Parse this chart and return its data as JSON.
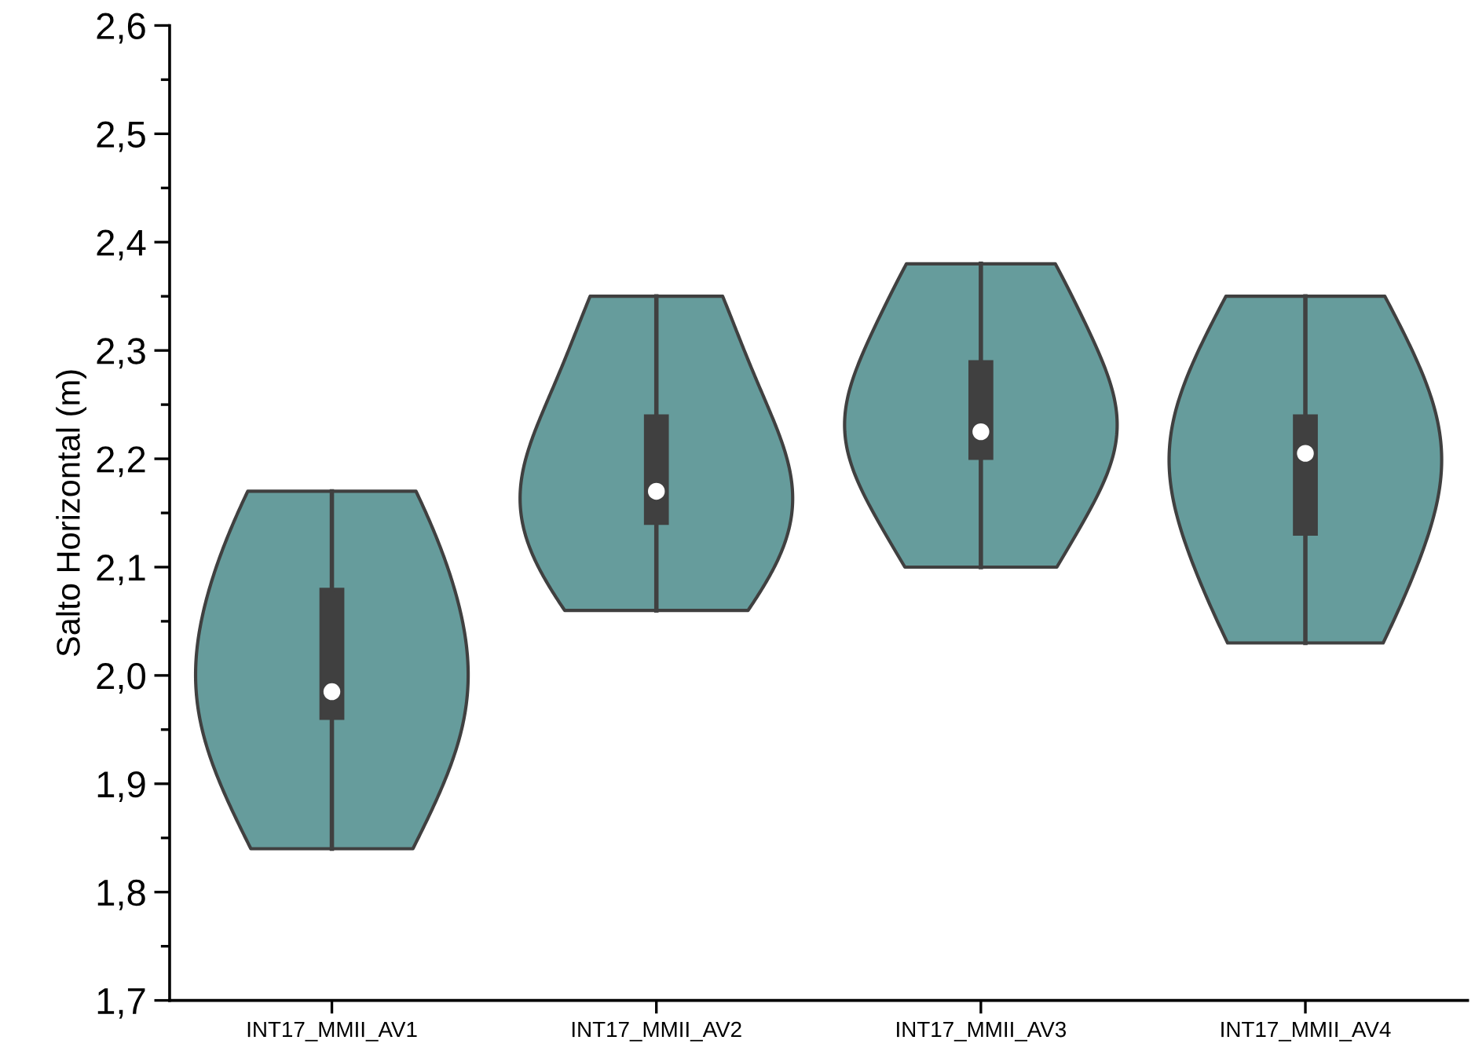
{
  "chart_data": {
    "type": "box",
    "ylabel": "Salto Horizontal (m)",
    "categories": [
      "INT17_MMII_AV1",
      "INT17_MMII_AV2",
      "INT17_MMII_AV3",
      "INT17_MMII_AV4"
    ],
    "series": [
      {
        "color": "#404040",
        "boxes": [
          {
            "low": 1.84,
            "q1": 1.96,
            "median": 1.985,
            "q3": 2.08,
            "high": 2.17
          },
          {
            "low": 2.06,
            "q1": 2.14,
            "median": 2.17,
            "q3": 2.24,
            "high": 2.35
          },
          {
            "low": 2.1,
            "q1": 2.2,
            "median": 2.225,
            "q3": 2.29,
            "high": 2.38
          },
          {
            "low": 2.03,
            "q1": 2.13,
            "median": 2.205,
            "q3": 2.24,
            "high": 2.35
          }
        ]
      }
    ],
    "ylim": [
      1.7,
      2.6
    ],
    "yticks": [
      {
        "value": 1.7,
        "label": "1,7"
      },
      {
        "value": 1.8,
        "label": "1,8"
      },
      {
        "value": 1.9,
        "label": "1,9"
      },
      {
        "value": 2.0,
        "label": "2,0"
      },
      {
        "value": 2.1,
        "label": "2,1"
      },
      {
        "value": 2.2,
        "label": "2,2"
      },
      {
        "value": 2.3,
        "label": "2,3"
      },
      {
        "value": 2.4,
        "label": "2,4"
      },
      {
        "value": 2.5,
        "label": "2,5"
      },
      {
        "value": 2.6,
        "label": "2,6"
      }
    ],
    "grid": false
  }
}
